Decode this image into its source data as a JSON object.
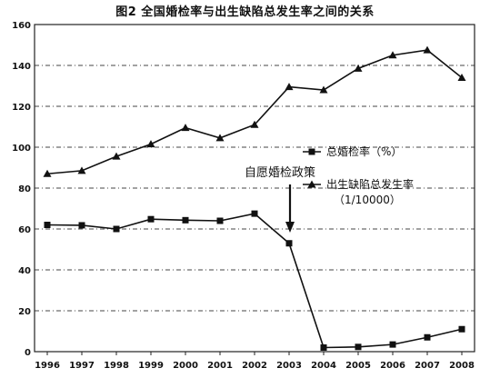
{
  "title": "图2  全国婚检率与出生缺陷总发生率之间的关系",
  "chart_data": {
    "type": "line",
    "x": [
      "1996",
      "1997",
      "1998",
      "1999",
      "2000",
      "2001",
      "2002",
      "2003",
      "2004",
      "2005",
      "2006",
      "2007",
      "2008"
    ],
    "ylim": [
      0,
      160
    ],
    "yticks": [
      0,
      20,
      40,
      60,
      80,
      100,
      120,
      140,
      160
    ],
    "grid": "horizontal dashed",
    "series": [
      {
        "name": "总婚检率（%）",
        "marker": "square",
        "values": [
          62,
          61.8,
          60,
          64.8,
          64.3,
          64,
          67.5,
          53,
          2,
          2.3,
          3.5,
          7,
          11
        ]
      },
      {
        "name": "出生缺陷总发生率",
        "name_line2": "（1/10000）",
        "marker": "triangle",
        "values": [
          87,
          88.5,
          95.5,
          101.5,
          109.5,
          104.5,
          111,
          129.5,
          128,
          138.5,
          145,
          147.5,
          134
        ]
      }
    ],
    "legend_position": "center-right",
    "annotations": [
      {
        "text": "自愿婚检政策",
        "x": "2003",
        "arrow": "down"
      }
    ]
  }
}
